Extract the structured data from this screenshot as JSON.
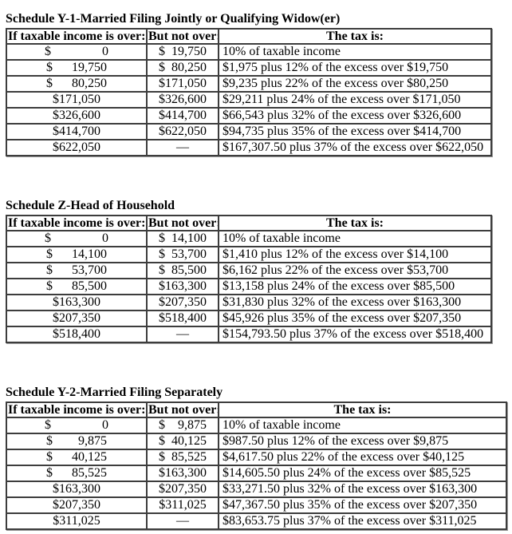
{
  "schedules": [
    {
      "title": "Schedule Y-1-Married Filing Jointly or Qualifying Widow(er)",
      "columns": [
        "If taxable income is over:",
        "But not over:",
        "The tax is:"
      ],
      "rows": [
        [
          "$                0",
          "$  19,750",
          "10% of taxable income"
        ],
        [
          "$      19,750",
          "$  80,250",
          "$1,975 plus 12% of the excess over $19,750"
        ],
        [
          "$      80,250",
          "$171,050",
          "$9,235 plus 22% of the excess over $80,250"
        ],
        [
          "$171,050",
          "$326,600",
          "$29,211 plus 24% of the excess over $171,050"
        ],
        [
          "$326,600",
          "$414,700",
          "$66,543 plus 32% of the excess over $326,600"
        ],
        [
          "$414,700",
          "$622,050",
          "$94,735 plus 35% of the excess over $414,700"
        ],
        [
          "$622,050",
          "—",
          "$167,307.50 plus 37% of the excess over $622,050"
        ]
      ]
    },
    {
      "title": "Schedule Z-Head of Household",
      "columns": [
        "If taxable income is over:",
        "But not over:",
        "The tax is:"
      ],
      "rows": [
        [
          "$                0",
          "$  14,100",
          "10% of taxable income"
        ],
        [
          "$      14,100",
          "$  53,700",
          "$1,410 plus 12% of the excess over $14,100"
        ],
        [
          "$      53,700",
          "$  85,500",
          "$6,162 plus 22% of the excess over $53,700"
        ],
        [
          "$      85,500",
          "$163,300",
          "$13,158 plus 24% of the excess over $85,500"
        ],
        [
          "$163,300",
          "$207,350",
          "$31,830 plus 32% of the excess over $163,300"
        ],
        [
          "$207,350",
          "$518,400",
          "$45,926 plus 35% of the excess over $207,350"
        ],
        [
          "$518,400",
          "—",
          "$154,793.50 plus 37% of the excess over $518,400"
        ]
      ]
    },
    {
      "title": "Schedule Y-2-Married Filing Separately",
      "columns": [
        "If taxable income is over:",
        "But not over:",
        "The tax is:"
      ],
      "rows": [
        [
          "$                0",
          "$    9,875",
          "10% of taxable income"
        ],
        [
          "$        9,875",
          "$  40,125",
          "$987.50 plus 12% of the excess over $9,875"
        ],
        [
          "$      40,125",
          "$  85,525",
          "$4,617.50 plus 22% of the excess over $40,125"
        ],
        [
          "$      85,525",
          "$163,300",
          "$14,605.50 plus 24% of the excess over $85,525"
        ],
        [
          "$163,300",
          "$207,350",
          "$33,271.50 plus 32% of the excess over $163,300"
        ],
        [
          "$207,350",
          "$311,025",
          "$47,367.50 plus 35% of the excess over $207,350"
        ],
        [
          "$311,025",
          "—",
          "$83,653.75 plus 37% of the excess over $311,025"
        ]
      ]
    }
  ]
}
